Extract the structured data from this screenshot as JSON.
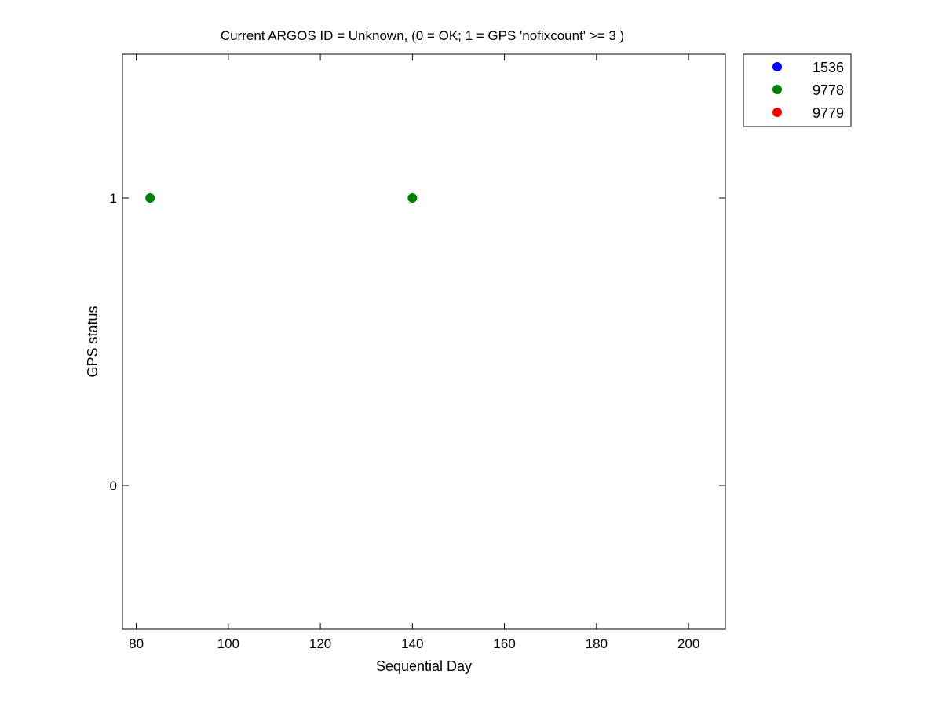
{
  "chart_data": {
    "type": "scatter",
    "title": "Current ARGOS ID = Unknown, (0 = OK; 1 = GPS 'nofixcount' >= 3 )",
    "xlabel": "Sequential Day",
    "ylabel": "GPS status",
    "xlim": [
      77,
      208
    ],
    "ylim": [
      -0.5,
      1.5
    ],
    "xticks": [
      80,
      100,
      120,
      140,
      160,
      180,
      200
    ],
    "yticks": [
      0,
      1
    ],
    "grid": false,
    "legend_position": "outside-top-right",
    "series": [
      {
        "name": "1536",
        "color": "#0000ff",
        "points": []
      },
      {
        "name": "9778",
        "color": "#008000",
        "points": [
          [
            83,
            1
          ],
          [
            140,
            1
          ]
        ]
      },
      {
        "name": "9779",
        "color": "#ff0000",
        "points": []
      }
    ]
  }
}
